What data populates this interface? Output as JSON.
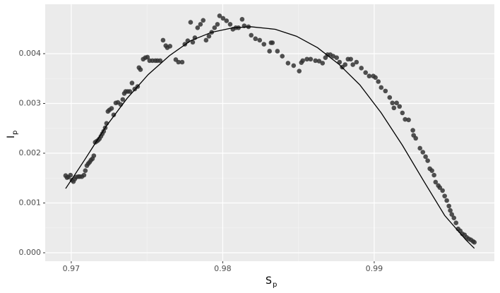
{
  "chart_data": {
    "type": "scatter",
    "x_label": {
      "text": "S",
      "subscript": "p"
    },
    "y_label": {
      "text": "I",
      "subscript": "p"
    },
    "xlim": [
      0.96828,
      0.99793
    ],
    "ylim": [
      -0.00017,
      0.004993
    ],
    "xticks": [
      0.97,
      0.98,
      0.99
    ],
    "yticks": [
      {
        "value": 0,
        "label": "0.000"
      },
      {
        "value": 0.001,
        "label": "0.001"
      },
      {
        "value": 0.002,
        "label": "0.002"
      },
      {
        "value": 0.003,
        "label": "0.003"
      },
      {
        "value": 0.004,
        "label": "0.004"
      }
    ],
    "grid": true,
    "series": [
      {
        "type": "scatter",
        "color": "#333333",
        "x": [
          0.96963,
          0.96972,
          0.96981,
          0.96995,
          0.97005,
          0.97014,
          0.97023,
          0.97033,
          0.97047,
          0.97056,
          0.9707,
          0.97084,
          0.97093,
          0.97103,
          0.97112,
          0.97121,
          0.9713,
          0.9714,
          0.97149,
          0.97158,
          0.97168,
          0.97177,
          0.97186,
          0.97196,
          0.97205,
          0.97214,
          0.97224,
          0.97233,
          0.97242,
          0.97252,
          0.97266,
          0.9728,
          0.97294,
          0.97308,
          0.97326,
          0.9734,
          0.9735,
          0.97359,
          0.97373,
          0.97387,
          0.97401,
          0.97419,
          0.97438,
          0.97447,
          0.97457,
          0.97475,
          0.97489,
          0.97503,
          0.97517,
          0.97536,
          0.97555,
          0.97569,
          0.97587,
          0.97606,
          0.97624,
          0.97634,
          0.97652,
          0.9769,
          0.97708,
          0.97732,
          0.9775,
          0.97769,
          0.97788,
          0.97802,
          0.97816,
          0.97834,
          0.97853,
          0.97871,
          0.9789,
          0.97909,
          0.97927,
          0.97946,
          0.97965,
          0.97979,
          0.98002,
          0.98025,
          0.98049,
          0.98067,
          0.98086,
          0.98104,
          0.98128,
          0.98142,
          0.9817,
          0.98188,
          0.98216,
          0.98244,
          0.98272,
          0.98309,
          0.98319,
          0.98328,
          0.98361,
          0.98393,
          0.98431,
          0.98468,
          0.98505,
          0.98519,
          0.98528,
          0.98556,
          0.9858,
          0.98612,
          0.98636,
          0.98659,
          0.98678,
          0.98692,
          0.9871,
          0.98729,
          0.98752,
          0.98771,
          0.98789,
          0.98808,
          0.98827,
          0.98845,
          0.98859,
          0.98883,
          0.98915,
          0.98943,
          0.98967,
          0.98994,
          0.99008,
          0.99027,
          0.99046,
          0.99074,
          0.99102,
          0.9912,
          0.9913,
          0.99148,
          0.99167,
          0.99186,
          0.99204,
          0.99227,
          0.99255,
          0.9926,
          0.99274,
          0.99302,
          0.99321,
          0.99339,
          0.99353,
          0.99367,
          0.99381,
          0.99395,
          0.99405,
          0.99423,
          0.99433,
          0.99451,
          0.99465,
          0.99479,
          0.99493,
          0.99502,
          0.99512,
          0.99526,
          0.9954,
          0.99554,
          0.99568,
          0.99582,
          0.99596,
          0.9961,
          0.99624,
          0.99638,
          0.99652,
          0.99661
        ],
        "values": [
          0.00155,
          0.00151,
          0.00152,
          0.00156,
          0.00146,
          0.00143,
          0.00148,
          0.00152,
          0.00153,
          0.00153,
          0.00153,
          0.00156,
          0.00165,
          0.00175,
          0.00179,
          0.00182,
          0.00186,
          0.00189,
          0.00195,
          0.00222,
          0.00224,
          0.00226,
          0.00229,
          0.00234,
          0.00239,
          0.00244,
          0.00251,
          0.0026,
          0.00284,
          0.00287,
          0.0029,
          0.00277,
          0.00301,
          0.00302,
          0.00298,
          0.00308,
          0.0032,
          0.00324,
          0.00324,
          0.00324,
          0.00341,
          0.00329,
          0.00334,
          0.00372,
          0.00368,
          0.00389,
          0.00392,
          0.00393,
          0.00386,
          0.00386,
          0.00386,
          0.00386,
          0.00386,
          0.00427,
          0.00416,
          0.00412,
          0.00415,
          0.00388,
          0.00383,
          0.00383,
          0.00419,
          0.00426,
          0.00463,
          0.00423,
          0.00432,
          0.00452,
          0.00459,
          0.00467,
          0.00427,
          0.00435,
          0.00443,
          0.00452,
          0.00459,
          0.00476,
          0.00471,
          0.00466,
          0.00459,
          0.00449,
          0.00452,
          0.00452,
          0.00469,
          0.00456,
          0.00454,
          0.00437,
          0.0043,
          0.00427,
          0.00419,
          0.00405,
          0.00422,
          0.00422,
          0.00405,
          0.00395,
          0.00381,
          0.00376,
          0.00365,
          0.00382,
          0.00386,
          0.00389,
          0.00389,
          0.00386,
          0.00385,
          0.00381,
          0.00392,
          0.00398,
          0.00398,
          0.00395,
          0.00392,
          0.00383,
          0.00373,
          0.00378,
          0.00389,
          0.00389,
          0.00378,
          0.00383,
          0.00371,
          0.00362,
          0.00355,
          0.00355,
          0.00352,
          0.00344,
          0.00332,
          0.00325,
          0.00312,
          0.00301,
          0.00291,
          0.00301,
          0.00294,
          0.00281,
          0.00268,
          0.00267,
          0.00246,
          0.00236,
          0.0023,
          0.0021,
          0.00202,
          0.00193,
          0.00185,
          0.00169,
          0.00165,
          0.00156,
          0.00142,
          0.00135,
          0.00131,
          0.00125,
          0.00114,
          0.00105,
          0.00094,
          0.00085,
          0.00077,
          0.0007,
          0.0006,
          0.00048,
          0.00044,
          0.00038,
          0.00036,
          0.00031,
          0.00028,
          0.00026,
          0.00023,
          0.00021
        ]
      },
      {
        "type": "line",
        "color": "#000000",
        "x": [
          0.96963,
          0.97089,
          0.97228,
          0.97368,
          0.97508,
          0.97648,
          0.97788,
          0.97927,
          0.98067,
          0.98188,
          0.98347,
          0.98487,
          0.98626,
          0.98766,
          0.98906,
          0.99046,
          0.99186,
          0.99325,
          0.99465,
          0.99605,
          0.99661
        ],
        "values": [
          0.00129,
          0.00187,
          0.00253,
          0.0031,
          0.00358,
          0.00396,
          0.00426,
          0.00443,
          0.00452,
          0.00454,
          0.00449,
          0.00435,
          0.00412,
          0.00379,
          0.00337,
          0.00281,
          0.00216,
          0.00145,
          0.00075,
          0.00026,
          9e-05
        ]
      }
    ]
  }
}
